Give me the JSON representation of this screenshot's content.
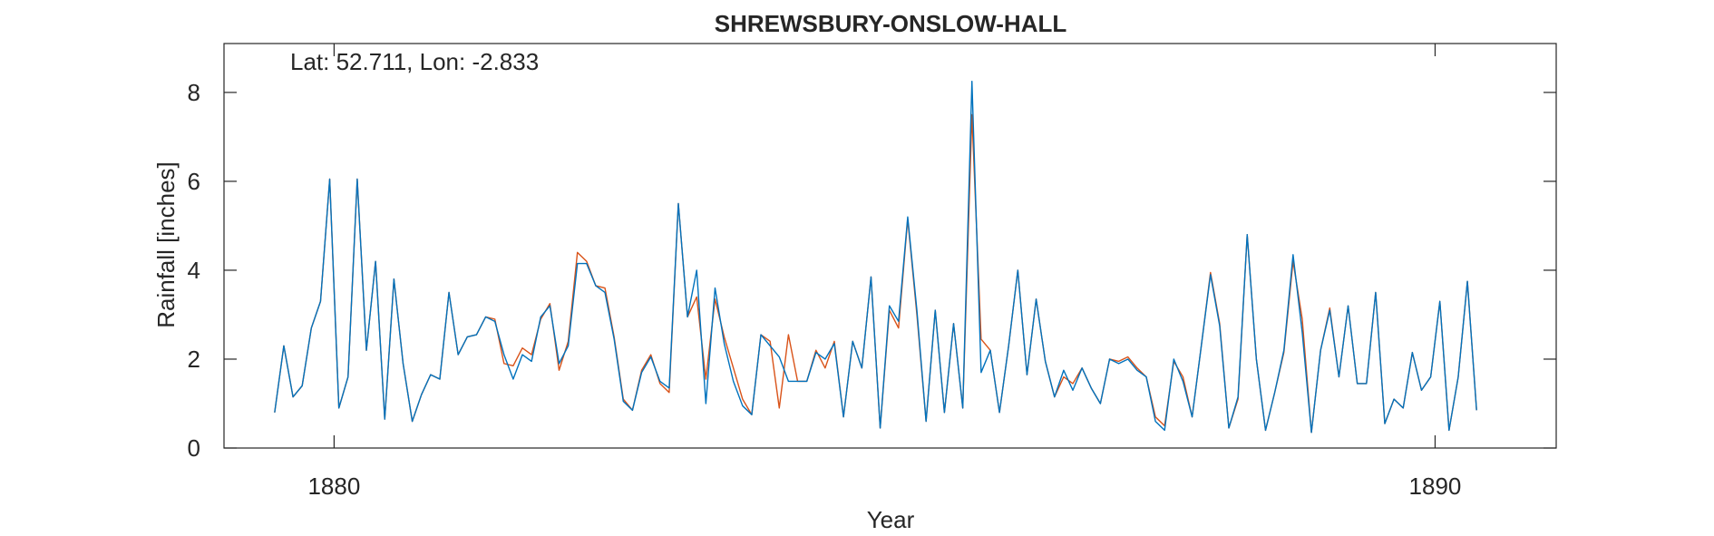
{
  "chart_data": {
    "type": "line",
    "title": "SHREWSBURY-ONSLOW-HALL",
    "annotation": "Lat: 52.711, Lon: -2.833",
    "xlabel": "Year",
    "ylabel": "Rainfall [inches]",
    "xlim": [
      1879.0,
      1891.1
    ],
    "ylim": [
      0,
      9.1
    ],
    "x_ticks": [
      1880,
      1890
    ],
    "x_tick_labels": [
      "1880",
      "1890"
    ],
    "y_ticks": [
      0,
      2,
      4,
      6,
      8
    ],
    "y_tick_labels": [
      "0",
      "2",
      "4",
      "6",
      "8"
    ],
    "grid": false,
    "box": true,
    "x_start": 1879.46,
    "x_step": 0.0833333,
    "series": [
      {
        "color": "#D95319",
        "values": [
          0.8,
          2.3,
          1.15,
          1.4,
          2.7,
          3.3,
          6.05,
          0.9,
          1.6,
          6.05,
          2.2,
          4.2,
          0.65,
          3.8,
          1.9,
          0.6,
          1.2,
          1.65,
          1.55,
          3.5,
          2.1,
          2.5,
          2.55,
          2.95,
          2.9,
          1.9,
          1.85,
          2.25,
          2.1,
          2.9,
          3.25,
          1.75,
          2.4,
          4.4,
          4.2,
          3.65,
          3.6,
          2.5,
          1.1,
          0.85,
          1.75,
          2.1,
          1.45,
          1.25,
          5.5,
          2.95,
          3.4,
          1.55,
          3.35,
          2.5,
          1.8,
          1.1,
          0.75,
          2.55,
          2.4,
          0.9,
          2.55,
          1.5,
          1.5,
          2.2,
          1.8,
          2.4,
          0.7,
          2.4,
          1.8,
          3.85,
          0.45,
          3.1,
          2.7,
          5.15,
          3.0,
          0.6,
          3.1,
          0.8,
          2.8,
          0.9,
          7.5,
          2.45,
          2.2,
          0.8,
          2.3,
          4.0,
          1.65,
          3.35,
          1.95,
          1.15,
          1.6,
          1.45,
          1.8,
          1.35,
          1.0,
          2.0,
          1.95,
          2.05,
          1.8,
          1.6,
          0.7,
          0.5,
          1.95,
          1.6,
          0.7,
          2.3,
          3.95,
          2.8,
          0.45,
          1.1,
          4.8,
          2.0,
          0.4,
          1.25,
          2.15,
          4.2,
          2.9,
          0.35,
          2.2,
          3.15,
          1.6,
          3.2,
          1.45,
          1.45,
          3.5,
          0.55,
          1.1,
          0.9,
          2.15,
          1.3,
          1.6,
          3.3,
          0.4,
          1.6,
          3.75,
          0.85
        ]
      },
      {
        "color": "#0072BD",
        "values": [
          0.8,
          2.3,
          1.15,
          1.4,
          2.7,
          3.3,
          6.05,
          0.9,
          1.6,
          6.05,
          2.2,
          4.2,
          0.65,
          3.8,
          1.9,
          0.6,
          1.2,
          1.65,
          1.55,
          3.5,
          2.1,
          2.5,
          2.55,
          2.95,
          2.85,
          2.1,
          1.55,
          2.1,
          1.95,
          2.95,
          3.2,
          1.9,
          2.3,
          4.15,
          4.15,
          3.65,
          3.5,
          2.45,
          1.05,
          0.85,
          1.7,
          2.05,
          1.5,
          1.35,
          5.5,
          2.95,
          4.0,
          1.0,
          3.6,
          2.35,
          1.5,
          0.95,
          0.75,
          2.55,
          2.3,
          2.05,
          1.5,
          1.5,
          1.5,
          2.15,
          2.0,
          2.35,
          0.7,
          2.4,
          1.8,
          3.85,
          0.45,
          3.2,
          2.85,
          5.2,
          3.1,
          0.6,
          3.1,
          0.8,
          2.8,
          0.9,
          8.25,
          1.7,
          2.2,
          0.8,
          2.3,
          4.0,
          1.65,
          3.35,
          1.95,
          1.15,
          1.75,
          1.3,
          1.8,
          1.35,
          1.0,
          2.0,
          1.9,
          2.0,
          1.75,
          1.6,
          0.6,
          0.4,
          2.0,
          1.5,
          0.7,
          2.3,
          3.9,
          2.75,
          0.45,
          1.15,
          4.8,
          2.0,
          0.4,
          1.25,
          2.2,
          4.35,
          2.6,
          0.35,
          2.2,
          3.1,
          1.6,
          3.2,
          1.45,
          1.45,
          3.5,
          0.55,
          1.1,
          0.9,
          2.15,
          1.3,
          1.6,
          3.3,
          0.4,
          1.6,
          3.75,
          0.85
        ]
      }
    ]
  }
}
